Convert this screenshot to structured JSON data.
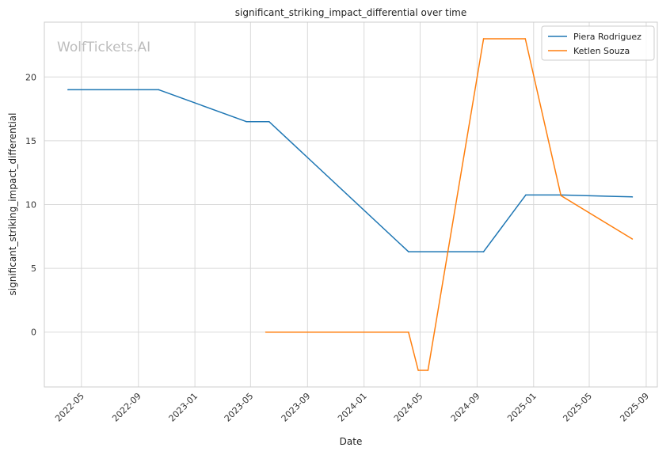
{
  "chart_data": {
    "type": "line",
    "title": "significant_striking_impact_differential over time",
    "xlabel": "Date",
    "ylabel": "significant_striking_impact_differential",
    "watermark": "WolfTickets.AI",
    "x_ticks": [
      "2022-05",
      "2022-09",
      "2023-01",
      "2023-05",
      "2023-09",
      "2024-01",
      "2024-05",
      "2024-09",
      "2025-01",
      "2025-05",
      "2025-09"
    ],
    "y_ticks": [
      0,
      5,
      10,
      15,
      20
    ],
    "xlim": [
      "2022-02-10",
      "2025-09-25"
    ],
    "ylim": [
      -4.3,
      24.3
    ],
    "grid": true,
    "legend_position": "top-right",
    "series": [
      {
        "name": "Piera Rodriguez",
        "color": "#1f77b4",
        "x": [
          "2022-04-02",
          "2022-10-15",
          "2023-04-22",
          "2023-06-10",
          "2024-04-06",
          "2024-09-15",
          "2024-12-15",
          "2025-03-01",
          "2025-08-02"
        ],
        "values": [
          19.0,
          19.0,
          16.5,
          16.5,
          6.3,
          6.3,
          10.75,
          10.75,
          10.6
        ]
      },
      {
        "name": "Ketlen Souza",
        "color": "#ff7f0e",
        "x": [
          "2023-06-03",
          "2024-04-06",
          "2024-04-27",
          "2024-05-18",
          "2024-09-15",
          "2024-12-14",
          "2025-03-01",
          "2025-08-02"
        ],
        "values": [
          0.0,
          0.0,
          -3.0,
          -3.0,
          23.0,
          23.0,
          10.7,
          7.3
        ]
      }
    ]
  }
}
